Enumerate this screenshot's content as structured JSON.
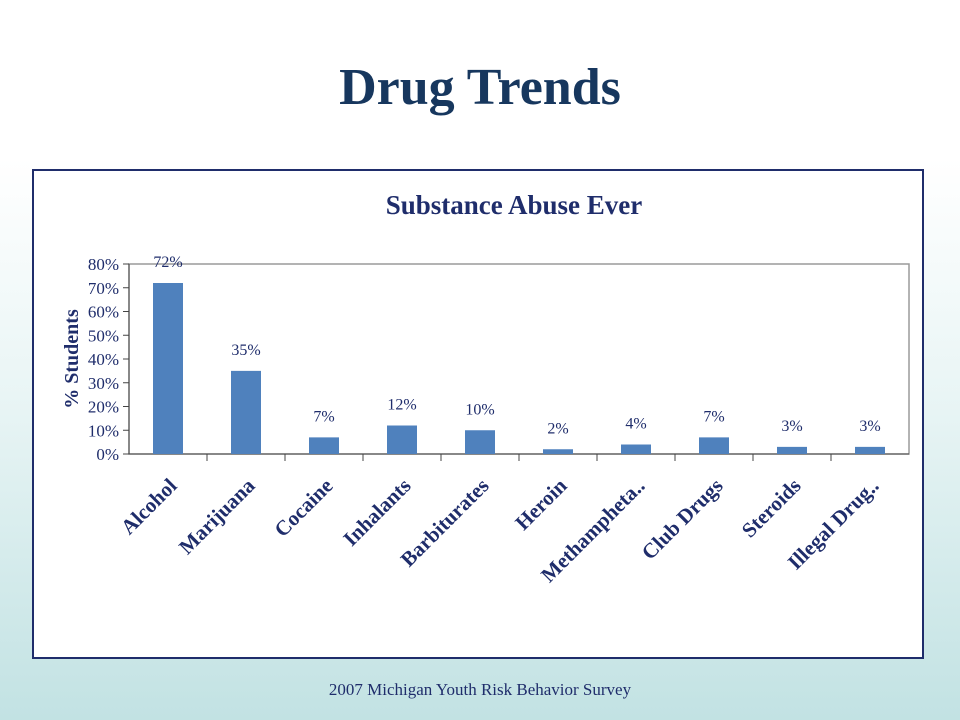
{
  "slide": {
    "title": "Drug Trends",
    "footer": "2007 Michigan Youth Risk Behavior Survey"
  },
  "colors": {
    "bar": "#4f81bd",
    "text": "#1f2d6b",
    "title": "#17375e"
  },
  "chart_data": {
    "type": "bar",
    "title": "Substance Abuse Ever",
    "xlabel": "",
    "ylabel": "% Students",
    "categories": [
      "Alcohol",
      "Marijuana",
      "Cocaine",
      "Inhalants",
      "Barbiturates",
      "Heroin",
      "Methampheta..",
      "Club Drugs",
      "Steroids",
      "Illegal Drug.."
    ],
    "values": [
      72,
      35,
      7,
      12,
      10,
      2,
      4,
      7,
      3,
      3
    ],
    "data_labels": [
      "72%",
      "35%",
      "7%",
      "12%",
      "10%",
      "2%",
      "4%",
      "7%",
      "3%",
      "3%"
    ],
    "ylim": [
      0,
      80
    ],
    "yticks": [
      0,
      10,
      20,
      30,
      40,
      50,
      60,
      70,
      80
    ],
    "ytick_labels": [
      "0%",
      "10%",
      "20%",
      "30%",
      "40%",
      "50%",
      "60%",
      "70%",
      "80%"
    ],
    "grid": false,
    "legend": "none"
  }
}
